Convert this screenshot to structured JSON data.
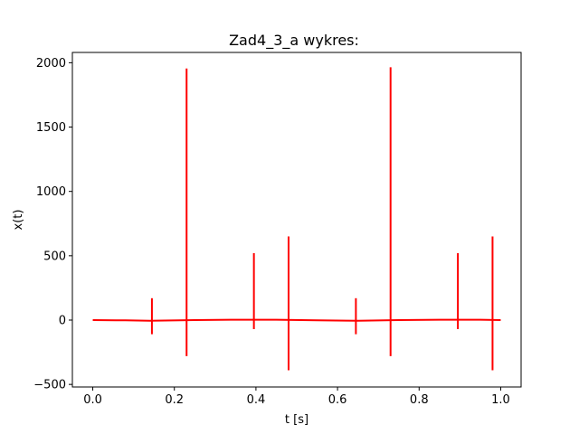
{
  "chart_data": {
    "type": "line",
    "title": "Zad4_3_a wykres:",
    "xlabel": "t [s]",
    "ylabel": "x(t)",
    "xlim": [
      -0.05,
      1.05
    ],
    "ylim": [
      -520,
      2080
    ],
    "xticks": [
      0.0,
      0.2,
      0.4,
      0.6,
      0.8,
      1.0
    ],
    "xtick_labels": [
      "0.0",
      "0.2",
      "0.4",
      "0.6",
      "0.8",
      "1.0"
    ],
    "yticks": [
      -500,
      0,
      500,
      1000,
      1500,
      2000
    ],
    "ytick_labels": [
      "−500",
      "0",
      "500",
      "1000",
      "1500",
      "2000"
    ],
    "grid": false,
    "series": [
      {
        "color": "#ff0000",
        "baseline": [
          [
            0.0,
            0
          ],
          [
            0.08,
            -2
          ],
          [
            0.14,
            -5
          ],
          [
            0.25,
            0
          ],
          [
            0.35,
            3
          ],
          [
            0.45,
            3
          ],
          [
            0.55,
            -2
          ],
          [
            0.65,
            -5
          ],
          [
            0.75,
            0
          ],
          [
            0.85,
            3
          ],
          [
            0.95,
            3
          ],
          [
            1.0,
            0
          ]
        ],
        "spikes": [
          {
            "t": 0.145,
            "max": 170,
            "min": -110
          },
          {
            "t": 0.23,
            "max": 1955,
            "min": -280
          },
          {
            "t": 0.395,
            "max": 520,
            "min": -70
          },
          {
            "t": 0.48,
            "max": 650,
            "min": -390
          },
          {
            "t": 0.645,
            "max": 170,
            "min": -110
          },
          {
            "t": 0.73,
            "max": 1965,
            "min": -280
          },
          {
            "t": 0.895,
            "max": 520,
            "min": -70
          },
          {
            "t": 0.98,
            "max": 650,
            "min": -390
          }
        ]
      }
    ]
  }
}
